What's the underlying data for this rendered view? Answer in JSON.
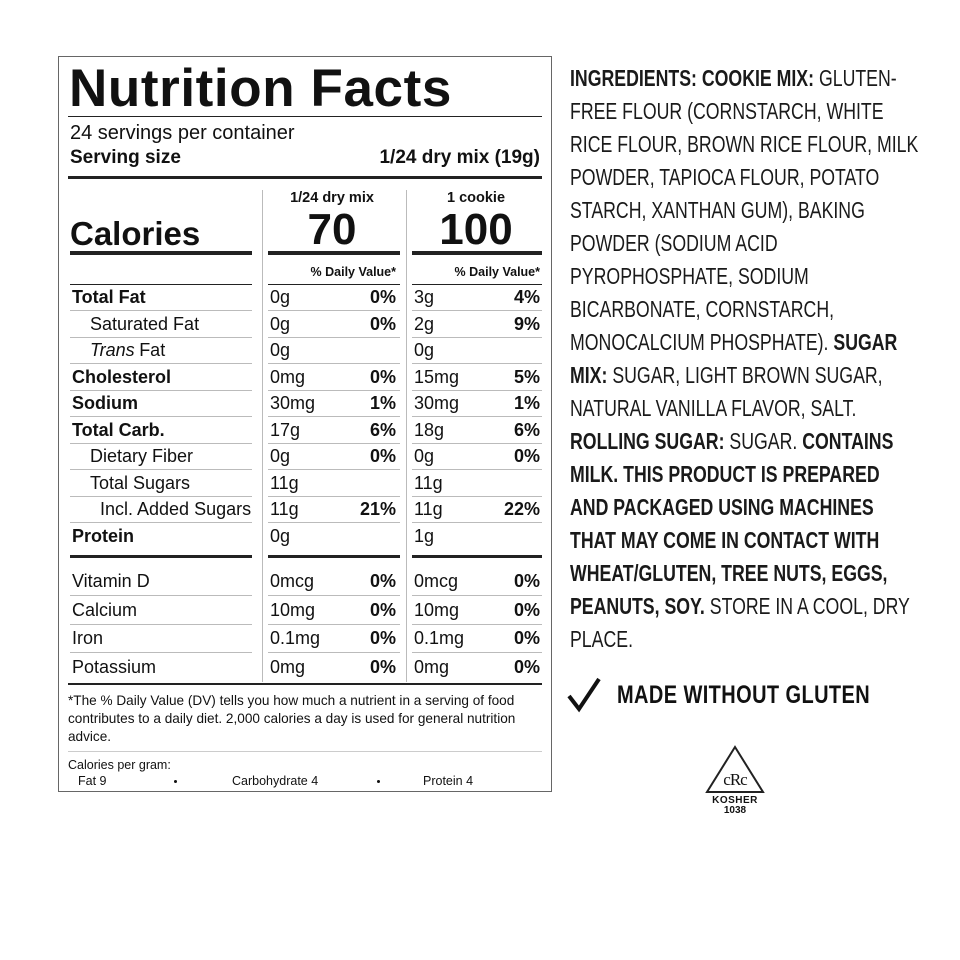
{
  "label": {
    "title": "Nutrition Facts",
    "servings": "24 servings per container",
    "serving_size_label": "Serving size",
    "serving_size_value": "1/24 dry mix (19g)",
    "calories_label": "Calories",
    "columns": [
      {
        "heading": "1/24 dry mix",
        "calories": "70",
        "dv_heading": "% Daily Value*"
      },
      {
        "heading": "1 cookie",
        "calories": "100",
        "dv_heading": "% Daily Value*"
      }
    ],
    "nutrients": [
      {
        "name": "Total Fat",
        "values": [
          [
            "0g",
            "0%"
          ],
          [
            "3g",
            "4%"
          ]
        ]
      },
      {
        "name": "Saturated Fat",
        "values": [
          [
            "0g",
            "0%"
          ],
          [
            "2g",
            "9%"
          ]
        ]
      },
      {
        "name_italic": "Trans",
        "name": "Fat",
        "values": [
          [
            "0g"
          ],
          [
            "0g"
          ]
        ]
      },
      {
        "name": "Cholesterol",
        "values": [
          [
            "0mg",
            "0%"
          ],
          [
            "15mg",
            "5%"
          ]
        ]
      },
      {
        "name": "Sodium",
        "values": [
          [
            "30mg",
            "1%"
          ],
          [
            "30mg",
            "1%"
          ]
        ]
      },
      {
        "name": "Total Carb.",
        "values": [
          [
            "17g",
            "6%"
          ],
          [
            "18g",
            "6%"
          ]
        ]
      },
      {
        "name": "Dietary Fiber",
        "values": [
          [
            "0g",
            "0%"
          ],
          [
            "0g",
            "0%"
          ]
        ]
      },
      {
        "name": "Total Sugars",
        "values": [
          [
            "11g"
          ],
          [
            "11g"
          ]
        ]
      },
      {
        "name": "Incl. Added Sugars",
        "values": [
          [
            "11g",
            "21%"
          ],
          [
            "11g",
            "22%"
          ]
        ]
      },
      {
        "name": "Protein",
        "values": [
          [
            "0g"
          ],
          [
            "1g"
          ]
        ]
      }
    ],
    "vitamins": [
      {
        "name": "Vitamin D",
        "values": [
          [
            "0mcg",
            "0%"
          ],
          [
            "0mcg",
            "0%"
          ]
        ]
      },
      {
        "name": "Calcium",
        "values": [
          [
            "10mg",
            "0%"
          ],
          [
            "10mg",
            "0%"
          ]
        ]
      },
      {
        "name": "Iron",
        "values": [
          [
            "0.1mg",
            "0%"
          ],
          [
            "0.1mg",
            "0%"
          ]
        ]
      },
      {
        "name": "Potassium",
        "values": [
          [
            "0mg",
            "0%"
          ],
          [
            "0mg",
            "0%"
          ]
        ]
      }
    ],
    "footnote": "*The % Daily Value (DV) tells you how much a nutrient in a serving of food contributes to a daily diet. 2,000 calories a day is used for general nutrition advice.",
    "calories_per_gram": {
      "label": "Calories per gram:",
      "items": [
        "Fat 9",
        "Carbohydrate 4",
        "Protein 4"
      ]
    }
  },
  "ingredients": {
    "heading": "INGREDIENTS: COOKIE MIX:",
    "cookie_mix": "GLUTEN-FREE FLOUR (CORNSTARCH, WHITE RICE FLOUR, BROWN RICE FLOUR, MILK POWDER, TAPIOCA FLOUR, POTATO STARCH, XANTHAN GUM), BAKING POWDER (SODIUM ACID PYROPHOSPHATE, SODIUM BICARBONATE, CORNSTARCH, MONOCALCIUM PHOSPHATE).",
    "sugar_mix_heading": "SUGAR MIX:",
    "sugar_mix": "SUGAR, LIGHT BROWN SUGAR, NATURAL VANILLA FLAVOR, SALT.",
    "rolling_sugar_heading": "ROLLING SUGAR:",
    "rolling_sugar": "SUGAR.",
    "allergens": "CONTAINS MILK. THIS PRODUCT IS PREPARED AND PACKAGED USING MACHINES THAT MAY COME IN CONTACT WITH WHEAT/GLUTEN, TREE NUTS, EGGS, PEANUTS, SOY.",
    "storage": "STORE IN A COOL, DRY PLACE."
  },
  "claim": "MADE WITHOUT GLUTEN",
  "kosher": {
    "symbol": "cRc",
    "label": "KOSHER",
    "number": "1038"
  }
}
